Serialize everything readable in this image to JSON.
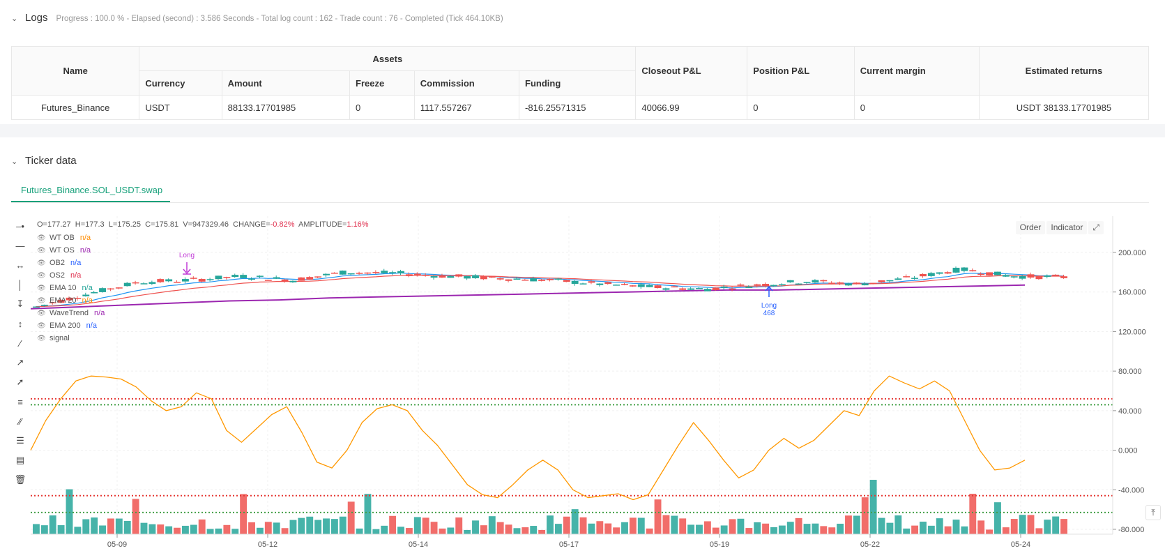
{
  "logs": {
    "title": "Logs",
    "meta": "Progress : 100.0 % - Elapsed (second) : 3.586  Seconds - Total log count : 162 - Trade count : 76 - Completed (Tick 464.10KB)",
    "table": {
      "name_header": "Name",
      "assets_header": "Assets",
      "sub_headers": [
        "Currency",
        "Amount",
        "Freeze",
        "Commission",
        "Funding"
      ],
      "closeout_header": "Closeout P&L",
      "position_header": "Position P&L",
      "margin_header": "Current margin",
      "returns_header": "Estimated returns",
      "row": {
        "name": "Futures_Binance",
        "currency": "USDT",
        "amount": "88133.17701985",
        "freeze": "0",
        "commission": "1117.557267",
        "funding": "-816.25571315",
        "closeout": "40066.99",
        "position": "0",
        "margin": "0",
        "returns": "USDT 38133.17701985"
      }
    }
  },
  "ticker": {
    "title": "Ticker data",
    "tab_label": "Futures_Binance.SOL_USDT.swap",
    "ohlc": {
      "o": "O=177.27",
      "h": "H=177.3",
      "l": "L=175.25",
      "c": "C=175.81",
      "v": "V=947329.46",
      "change_label": "CHANGE=",
      "change": "-0.82%",
      "amp_label": "AMPLITUDE=",
      "amp": "1.16%"
    },
    "legend": [
      {
        "label": "WT OB",
        "value": "n/a",
        "color": "#ff8c00"
      },
      {
        "label": "WT OS",
        "value": "n/a",
        "color": "#9c27b0"
      },
      {
        "label": "OB2",
        "value": "n/a",
        "color": "#2962ff"
      },
      {
        "label": "OS2",
        "value": "n/a",
        "color": "#e0304e"
      },
      {
        "label": "EMA 10",
        "value": "n/a",
        "color": "#26a69a"
      },
      {
        "label": "EMA 20",
        "value": "n/a",
        "color": "#ff8c00"
      },
      {
        "label": "WaveTrend",
        "value": "n/a",
        "color": "#9c27b0"
      },
      {
        "label": "EMA 200",
        "value": "n/a",
        "color": "#2962ff"
      },
      {
        "label": "signal",
        "value": "",
        "color": "#555555"
      }
    ],
    "buttons": {
      "order": "Order",
      "indicator": "Indicator"
    },
    "annotations": {
      "long1": "Long",
      "long2": "Long",
      "long2_qty": "468"
    }
  },
  "chart_data": {
    "type": "line",
    "x_ticks": [
      "05-09",
      "05-12",
      "05-14",
      "05-17",
      "05-19",
      "05-22",
      "05-24"
    ],
    "y_ticks": [
      "200.000",
      "160.000",
      "120.000",
      "80.000",
      "40.000",
      "0.000",
      "-40.000",
      "-80.000"
    ],
    "ylim": [
      -80,
      200
    ],
    "colors": {
      "up": "#26a69a",
      "down": "#ef5350",
      "ema_fast": "#2196f3",
      "ema_slow": "#ef5350",
      "ema200": "#9c27b0",
      "wavetrend": "#ff9800",
      "ob_level": "#e53935",
      "os_level": "#43a047"
    },
    "series": [
      {
        "name": "EMA 200",
        "values": [
          143,
          145,
          147,
          149,
          151,
          152,
          154,
          155,
          156,
          157,
          158,
          159,
          160,
          161,
          162,
          162,
          163,
          164,
          165,
          166,
          167
        ]
      },
      {
        "name": "WaveTrend",
        "values": [
          0,
          30,
          52,
          70,
          75,
          74,
          72,
          64,
          50,
          40,
          44,
          58,
          52,
          20,
          8,
          22,
          36,
          44,
          18,
          -12,
          -18,
          0,
          28,
          42,
          46,
          40,
          20,
          5,
          -15,
          -35,
          -45,
          -48,
          -35,
          -20,
          -10,
          -20,
          -40,
          -48,
          -46,
          -44,
          -50,
          -45,
          -20,
          5,
          28,
          10,
          -10,
          -28,
          -20,
          0,
          12,
          2,
          10,
          25,
          40,
          35,
          60,
          75,
          68,
          62,
          70,
          60,
          30,
          0,
          -20,
          -18,
          -10
        ]
      },
      {
        "name": "signal",
        "values": [
          52,
          46,
          -46,
          -63
        ]
      }
    ]
  }
}
